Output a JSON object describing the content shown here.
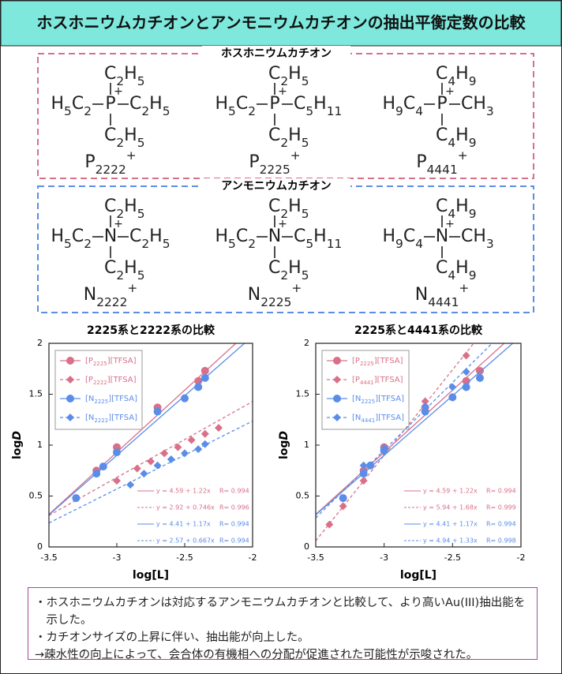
{
  "header": {
    "title": "ホスホニウムカチオンとアンモニウムカチオンの抽出平衡定数の比較"
  },
  "phosphonium": {
    "title": "ホスホニウムカチオン",
    "compounds": [
      {
        "top": "C2H5",
        "left": "H5C2",
        "center": "P",
        "charge": "+",
        "right": "C2H5",
        "bottom": "C2H5",
        "label": "P2222+"
      },
      {
        "top": "C2H5",
        "left": "H5C2",
        "center": "P",
        "charge": "+",
        "right": "C5H11",
        "bottom": "C2H5",
        "label": "P2225+"
      },
      {
        "top": "C4H9",
        "left": "H9C4",
        "center": "P",
        "charge": "+",
        "right": "CH3",
        "bottom": "C4H9",
        "label": "P4441+"
      }
    ]
  },
  "ammonium": {
    "title": "アンモニウムカチオン",
    "compounds": [
      {
        "top": "C2H5",
        "left": "H5C2",
        "center": "N",
        "charge": "+",
        "right": "C2H5",
        "bottom": "C2H5",
        "label": "N2222+"
      },
      {
        "top": "C2H5",
        "left": "H5C2",
        "center": "N",
        "charge": "+",
        "right": "C5H11",
        "bottom": "C2H5",
        "label": "N2225+"
      },
      {
        "top": "C4H9",
        "left": "H9C4",
        "center": "N",
        "charge": "+",
        "right": "CH3",
        "bottom": "C4H9",
        "label": "N4441+"
      }
    ]
  },
  "chart_data": [
    {
      "type": "scatter",
      "title": "2225系と2222系の比較",
      "xlabel": "log[L]",
      "ylabel": "logD",
      "xlim": [
        -3.5,
        -2
      ],
      "ylim": [
        0,
        2
      ],
      "xticks": [
        -3.5,
        -3,
        -2.5,
        -2
      ],
      "yticks": [
        0,
        0.5,
        1,
        1.5,
        2
      ],
      "series": [
        {
          "name": "[P2225][TFSA]",
          "color": "#d9708a",
          "marker": "circle",
          "dashed": false,
          "x": [
            -3.15,
            -3.0,
            -2.7,
            -2.4,
            -2.35
          ],
          "values": [
            0.75,
            0.98,
            1.37,
            1.63,
            1.73
          ],
          "fit": {
            "label": "y = 4.59 + 1.22x",
            "r": "R= 0.994",
            "intercept": 4.59,
            "slope": 1.22
          }
        },
        {
          "name": "[P2222][TFSA]",
          "color": "#d9708a",
          "marker": "diamond",
          "dashed": true,
          "x": [
            -3.0,
            -2.85,
            -2.75,
            -2.65,
            -2.55,
            -2.45,
            -2.35,
            -2.25
          ],
          "values": [
            0.65,
            0.77,
            0.84,
            0.92,
            0.98,
            1.05,
            1.11,
            1.17
          ],
          "fit": {
            "label": "y = 2.92 + 0.746x",
            "r": "R= 0.996",
            "intercept": 2.92,
            "slope": 0.746
          }
        },
        {
          "name": "[N2225][TFSA]",
          "color": "#5b8de8",
          "marker": "circle",
          "dashed": false,
          "x": [
            -3.3,
            -3.15,
            -3.1,
            -3.0,
            -2.7,
            -2.5,
            -2.4,
            -2.35
          ],
          "values": [
            0.48,
            0.72,
            0.79,
            0.93,
            1.33,
            1.46,
            1.57,
            1.66
          ],
          "fit": {
            "label": "y = 4.41 + 1.17x",
            "r": "R= 0.994",
            "intercept": 4.41,
            "slope": 1.17
          }
        },
        {
          "name": "[N2222][TFSA]",
          "color": "#5b8de8",
          "marker": "diamond",
          "dashed": true,
          "x": [
            -2.9,
            -2.8,
            -2.7,
            -2.6,
            -2.5,
            -2.4,
            -2.35
          ],
          "values": [
            0.61,
            0.72,
            0.8,
            0.86,
            0.92,
            0.96,
            1.01
          ],
          "fit": {
            "label": "y = 2.57 + 0.667x",
            "r": "R= 0.994",
            "intercept": 2.57,
            "slope": 0.667
          }
        }
      ]
    },
    {
      "type": "scatter",
      "title": "2225系と4441系の比較",
      "xlabel": "log[L]",
      "ylabel": "logD",
      "xlim": [
        -3.5,
        -2
      ],
      "ylim": [
        0,
        2
      ],
      "xticks": [
        -3.5,
        -3,
        -2.5,
        -2
      ],
      "yticks": [
        0,
        0.5,
        1,
        1.5,
        2
      ],
      "series": [
        {
          "name": "[P2225][TFSA]",
          "color": "#d9708a",
          "marker": "circle",
          "dashed": false,
          "x": [
            -3.15,
            -3.0,
            -2.7,
            -2.4,
            -2.3
          ],
          "values": [
            0.75,
            0.98,
            1.37,
            1.63,
            1.73
          ],
          "fit": {
            "label": "y = 4.59 + 1.22x",
            "r": "R= 0.994",
            "intercept": 4.59,
            "slope": 1.22
          }
        },
        {
          "name": "[P4441][TFSA]",
          "color": "#d9708a",
          "marker": "diamond",
          "dashed": true,
          "x": [
            -3.4,
            -3.3,
            -3.15,
            -3.0,
            -2.7,
            -2.4
          ],
          "values": [
            0.22,
            0.4,
            0.65,
            0.93,
            1.43,
            1.88
          ],
          "fit": {
            "label": "y = 5.94 + 1.68x",
            "r": "R= 0.999",
            "intercept": 5.94,
            "slope": 1.68
          }
        },
        {
          "name": "[N2225][TFSA]",
          "color": "#5b8de8",
          "marker": "circle",
          "dashed": false,
          "x": [
            -3.3,
            -3.15,
            -3.1,
            -3.0,
            -2.7,
            -2.5,
            -2.4,
            -2.3
          ],
          "values": [
            0.48,
            0.72,
            0.8,
            0.95,
            1.33,
            1.47,
            1.57,
            1.66
          ],
          "fit": {
            "label": "y = 4.41 + 1.17x",
            "r": "R= 0.994",
            "intercept": 4.41,
            "slope": 1.17
          }
        },
        {
          "name": "[N4441][TFSA]",
          "color": "#5b8de8",
          "marker": "diamond",
          "dashed": true,
          "x": [
            -3.15,
            -3.0,
            -2.7,
            -2.5,
            -2.4
          ],
          "values": [
            0.8,
            0.97,
            1.38,
            1.57,
            1.72
          ],
          "fit": {
            "label": "y = 4.94 + 1.33x",
            "r": "R= 0.998",
            "intercept": 4.94,
            "slope": 1.33
          }
        }
      ]
    }
  ],
  "notes": [
    "・ホスホニウムカチオンは対応するアンモニウムカチオンと比較して、より高いAu(III)抽出能を示した。",
    "・カチオンサイズの上昇に伴い、抽出能が向上した。",
    "→疎水性の向上によって、会合体の有機相への分配が促進された可能性が示唆された。"
  ]
}
